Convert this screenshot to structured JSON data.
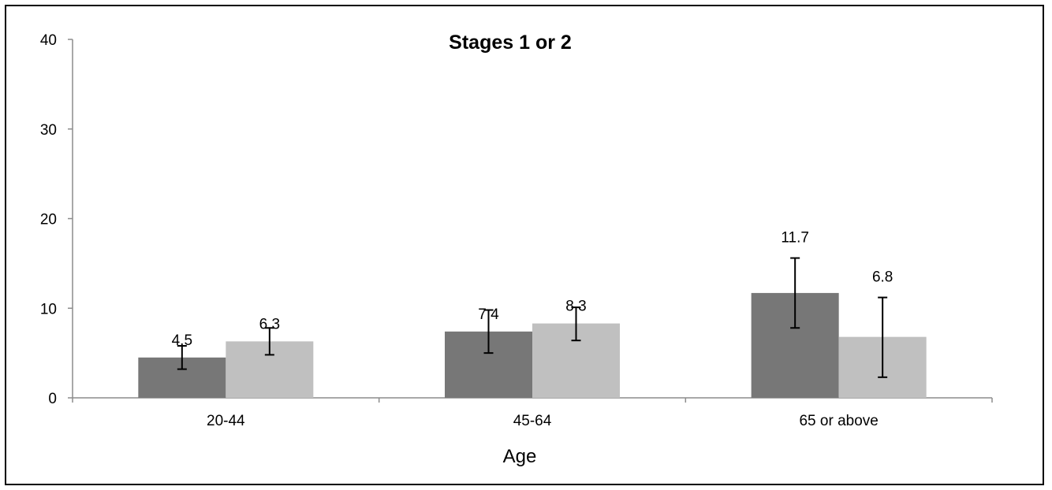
{
  "chart_data": {
    "type": "bar",
    "title": "Stages 1 or 2",
    "xlabel": "Age",
    "ylabel": "",
    "ylim": [
      0,
      40
    ],
    "yticks": [
      0,
      10,
      20,
      30,
      40
    ],
    "categories": [
      "20-44",
      "45-64",
      "65 or above"
    ],
    "grid": false,
    "series": [
      {
        "color": "#777777",
        "values": [
          4.5,
          7.4,
          11.7
        ],
        "labels": [
          "4.5",
          "7.4",
          "11.7"
        ],
        "error_low": [
          3.2,
          5.0,
          7.8
        ],
        "error_high": [
          5.8,
          9.8,
          15.6
        ]
      },
      {
        "color": "#c0c0c0",
        "values": [
          6.3,
          8.3,
          6.8
        ],
        "labels": [
          "6.3",
          "8.3",
          "6.8"
        ],
        "error_low": [
          4.8,
          6.4,
          2.3
        ],
        "error_high": [
          7.8,
          10.1,
          11.2
        ]
      }
    ]
  }
}
